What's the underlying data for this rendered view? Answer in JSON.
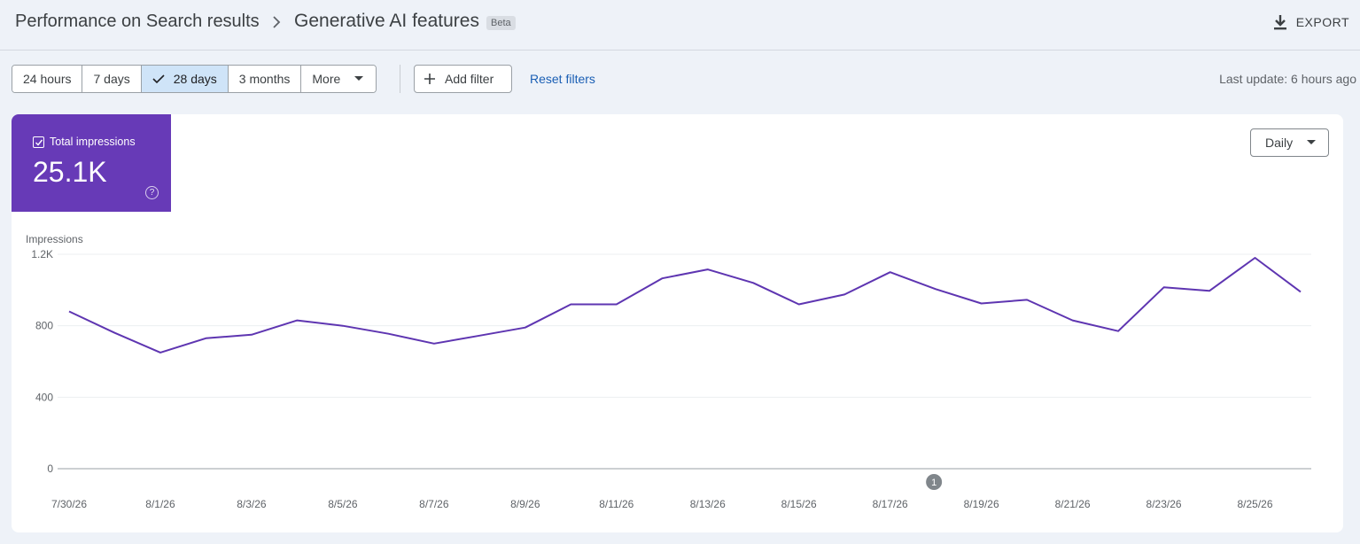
{
  "header": {
    "breadcrumb": "Performance on Search results",
    "title": "Generative AI features",
    "badge": "Beta",
    "export_label": "EXPORT"
  },
  "filters": {
    "ranges": [
      "24 hours",
      "7 days",
      "28 days",
      "3 months",
      "More"
    ],
    "selected_range": "28 days",
    "add_filter_label": "Add filter",
    "reset_label": "Reset filters",
    "last_update": "Last update: 6 hours ago"
  },
  "metric": {
    "label": "Total impressions",
    "value": "25.1K",
    "checked": true,
    "color": "#673ab7"
  },
  "granularity": {
    "label": "Daily"
  },
  "annotation": {
    "label": "1",
    "date": "8/18/26"
  },
  "chart_data": {
    "type": "line",
    "ylabel": "Impressions",
    "ylim": [
      0,
      1200
    ],
    "yticks": [
      0,
      400,
      800,
      1200
    ],
    "ytick_labels": [
      "0",
      "400",
      "800",
      "1.2K"
    ],
    "x": [
      "7/30/26",
      "7/31/26",
      "8/1/26",
      "8/2/26",
      "8/3/26",
      "8/4/26",
      "8/5/26",
      "8/6/26",
      "8/7/26",
      "8/8/26",
      "8/9/26",
      "8/10/26",
      "8/11/26",
      "8/12/26",
      "8/13/26",
      "8/14/26",
      "8/15/26",
      "8/16/26",
      "8/17/26",
      "8/18/26",
      "8/19/26",
      "8/20/26",
      "8/21/26",
      "8/22/26",
      "8/23/26",
      "8/24/26",
      "8/25/26",
      "8/26/26"
    ],
    "xtick_labels": [
      "7/30/26",
      "8/1/26",
      "8/3/26",
      "8/5/26",
      "8/7/26",
      "8/9/26",
      "8/11/26",
      "8/13/26",
      "8/15/26",
      "8/17/26",
      "8/19/26",
      "8/21/26",
      "8/23/26",
      "8/25/26"
    ],
    "series": [
      {
        "values": [
          880,
          760,
          650,
          730,
          750,
          830,
          800,
          755,
          700,
          745,
          790,
          920,
          920,
          1065,
          1115,
          1040,
          920,
          975,
          1100,
          1005,
          925,
          945,
          830,
          770,
          1015,
          995,
          1180,
          990
        ],
        "color": "#5e35b1"
      }
    ],
    "grid": true
  }
}
